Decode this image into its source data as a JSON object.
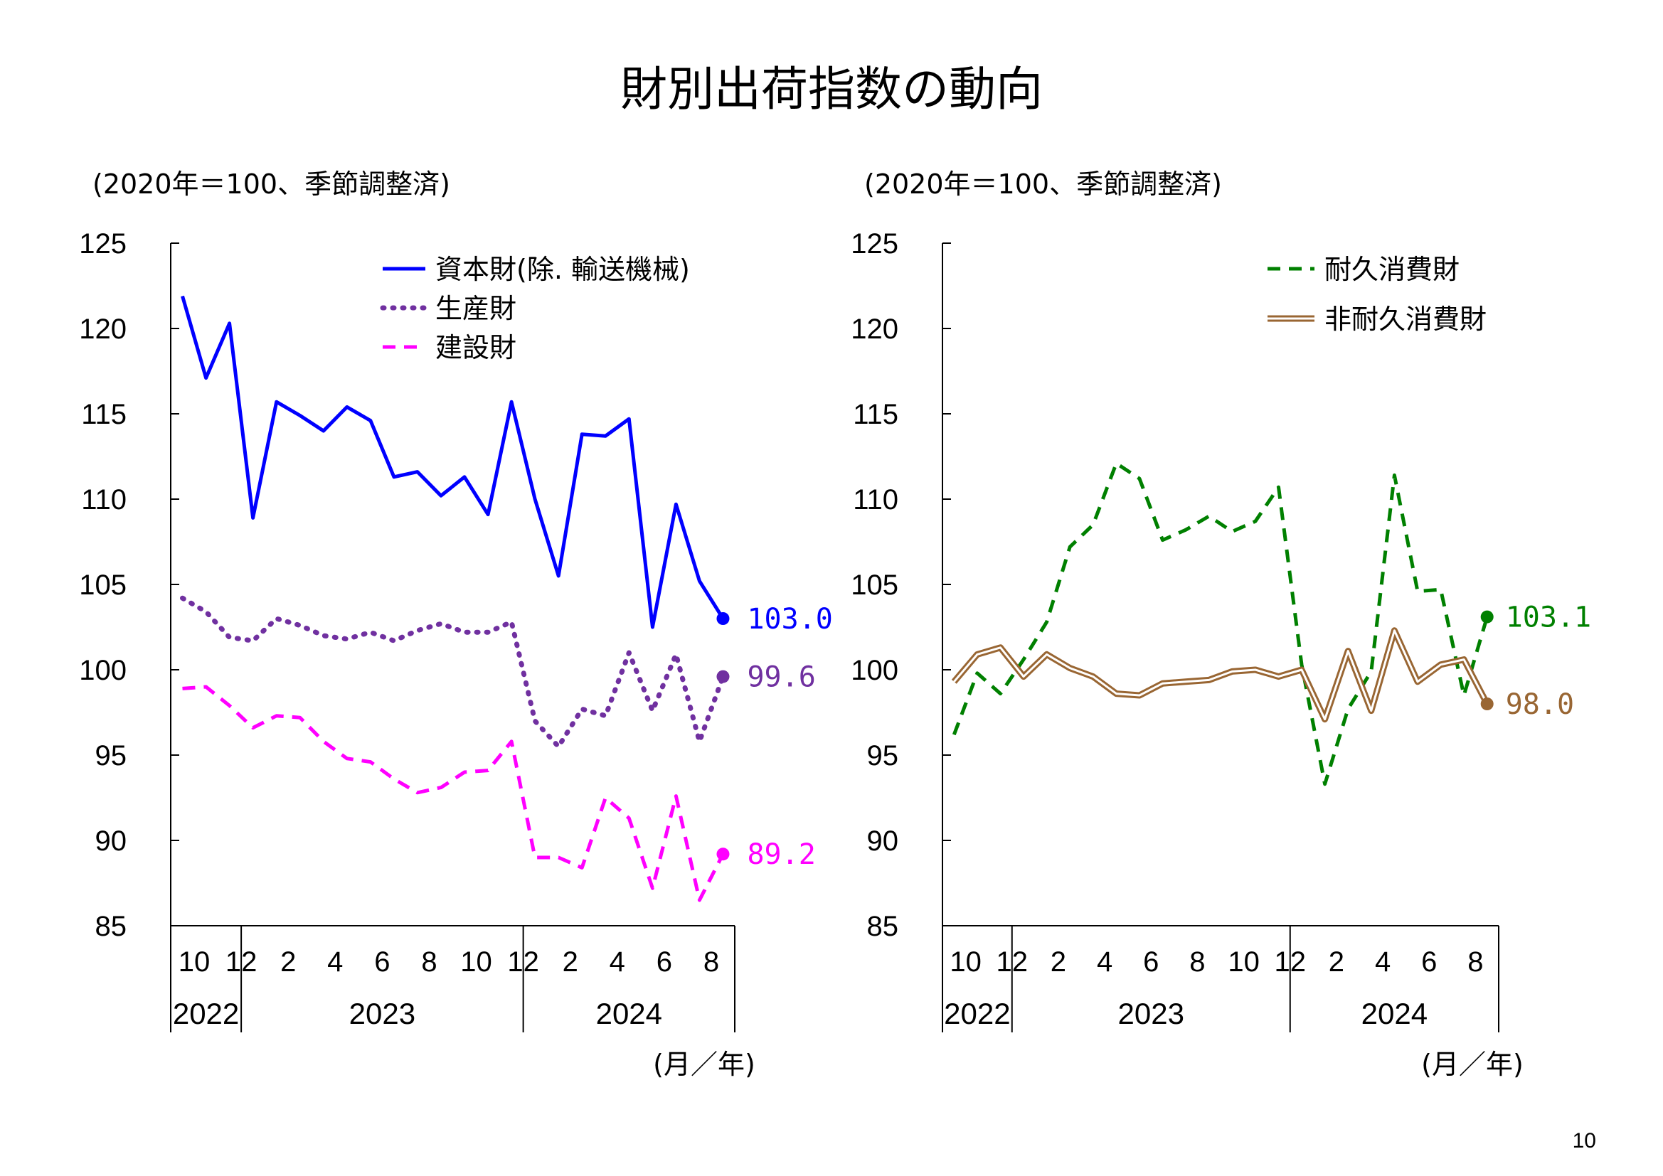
{
  "title": "財別出荷指数の動向",
  "page_number": "10",
  "colors": {
    "capital": "#0000ff",
    "production": "#7030a0",
    "construction": "#ff00ff",
    "durable": "#008000",
    "nondurable": "#996633"
  },
  "chart_data": [
    {
      "type": "line",
      "unit_label": "(2020年＝100、季節調整済)",
      "x_unit_label": "(月／年)",
      "ylim": [
        85,
        125
      ],
      "yticks": [
        "85",
        "90",
        "95",
        "100",
        "105",
        "110",
        "115",
        "120",
        "125"
      ],
      "x": [
        "2022-10",
        "2022-11",
        "2022-12",
        "2023-01",
        "2023-02",
        "2023-03",
        "2023-04",
        "2023-05",
        "2023-06",
        "2023-07",
        "2023-08",
        "2023-09",
        "2023-10",
        "2023-11",
        "2023-12",
        "2024-01",
        "2024-02",
        "2024-03",
        "2024-04",
        "2024-05",
        "2024-06",
        "2024-07",
        "2024-08",
        "2024-09"
      ],
      "month_ticks": [
        "10",
        "12",
        "2",
        "4",
        "6",
        "8",
        "10",
        "12",
        "2",
        "4",
        "6",
        "8"
      ],
      "years": [
        "2022",
        "2023",
        "2024"
      ],
      "series": [
        {
          "name": "資本財(除. 輸送機械)",
          "style": "solid",
          "color_key": "capital",
          "values": [
            121.9,
            117.1,
            120.3,
            108.9,
            115.7,
            114.9,
            114.0,
            115.4,
            114.6,
            111.3,
            111.6,
            110.2,
            111.3,
            109.1,
            115.7,
            110.0,
            105.5,
            113.8,
            113.7,
            114.7,
            102.5,
            109.7,
            105.2,
            103.0
          ],
          "end_label": "103.0"
        },
        {
          "name": "生産財",
          "style": "dotted",
          "color_key": "production",
          "values": [
            104.2,
            103.4,
            101.9,
            101.7,
            103.0,
            102.6,
            102.0,
            101.8,
            102.2,
            101.7,
            102.3,
            102.7,
            102.2,
            102.2,
            102.8,
            97.0,
            95.5,
            97.7,
            97.3,
            101.0,
            97.6,
            100.9,
            95.8,
            99.6
          ],
          "end_label": "99.6"
        },
        {
          "name": "建設財",
          "style": "dashed",
          "color_key": "construction",
          "values": [
            98.9,
            99.0,
            97.9,
            96.6,
            97.3,
            97.2,
            95.8,
            94.8,
            94.6,
            93.6,
            92.8,
            93.1,
            94.0,
            94.1,
            95.8,
            89.0,
            89.0,
            88.4,
            92.5,
            91.3,
            87.2,
            92.6,
            86.5,
            89.2
          ],
          "end_label": "89.2"
        }
      ]
    },
    {
      "type": "line",
      "unit_label": "(2020年＝100、季節調整済)",
      "x_unit_label": "(月／年)",
      "ylim": [
        85,
        125
      ],
      "yticks": [
        "85",
        "90",
        "95",
        "100",
        "105",
        "110",
        "115",
        "120",
        "125"
      ],
      "x": [
        "2022-10",
        "2022-11",
        "2022-12",
        "2023-01",
        "2023-02",
        "2023-03",
        "2023-04",
        "2023-05",
        "2023-06",
        "2023-07",
        "2023-08",
        "2023-09",
        "2023-10",
        "2023-11",
        "2023-12",
        "2024-01",
        "2024-02",
        "2024-03",
        "2024-04",
        "2024-05",
        "2024-06",
        "2024-07",
        "2024-08",
        "2024-09"
      ],
      "month_ticks": [
        "10",
        "12",
        "2",
        "4",
        "6",
        "8",
        "10",
        "12",
        "2",
        "4",
        "6",
        "8"
      ],
      "years": [
        "2022",
        "2023",
        "2024"
      ],
      "series": [
        {
          "name": "耐久消費財",
          "style": "dashed",
          "color_key": "durable",
          "values": [
            96.2,
            99.8,
            98.6,
            100.6,
            102.8,
            107.2,
            108.5,
            112.1,
            111.2,
            107.6,
            108.2,
            109.0,
            108.1,
            108.7,
            110.7,
            100.3,
            93.3,
            97.7,
            99.9,
            111.4,
            104.6,
            104.7,
            98.5,
            103.1
          ],
          "end_label": "103.1"
        },
        {
          "name": "非耐久消費財",
          "style": "double",
          "color_key": "nondurable",
          "values": [
            99.3,
            100.9,
            101.3,
            99.6,
            100.9,
            100.1,
            99.6,
            98.6,
            98.5,
            99.2,
            99.3,
            99.4,
            99.9,
            100.0,
            99.6,
            100.0,
            97.1,
            101.1,
            97.6,
            102.3,
            99.3,
            100.3,
            100.6,
            98.0
          ],
          "end_label": "98.0"
        }
      ]
    }
  ]
}
